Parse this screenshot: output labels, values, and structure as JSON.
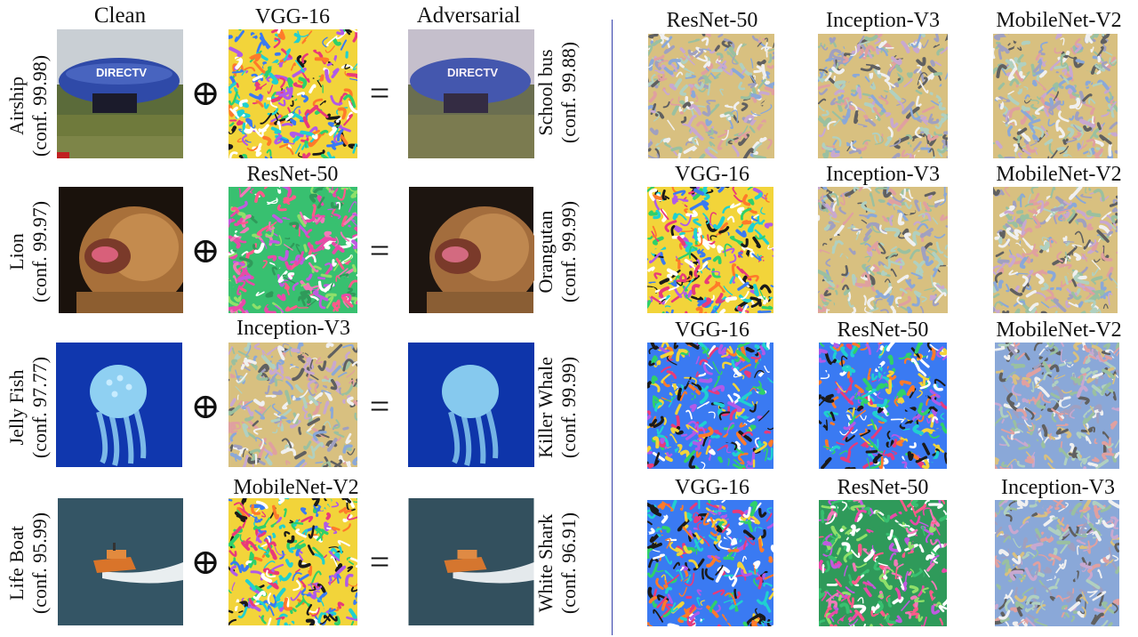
{
  "left_panel": {
    "headers": {
      "clean": "Clean",
      "adversarial": "Adversarial"
    },
    "rows": [
      {
        "clean_label": "Airship",
        "clean_conf": "(conf. 99.98)",
        "model": "VGG-16",
        "adv_label": "School bus",
        "adv_conf": "(conf. 99.88)",
        "operator_plus": "⊕",
        "operator_eq": "="
      },
      {
        "clean_label": "Lion",
        "clean_conf": "(conf. 99.97)",
        "model": "ResNet-50",
        "adv_label": "Orangutan",
        "adv_conf": "(conf. 99.99)",
        "operator_plus": "⊕",
        "operator_eq": "="
      },
      {
        "clean_label": "Jelly Fish",
        "clean_conf": "(conf. 97.77)",
        "model": "Inception-V3",
        "adv_label": "Killer Whale",
        "adv_conf": "(conf. 99.99)",
        "operator_plus": "⊕",
        "operator_eq": "="
      },
      {
        "clean_label": "Life Boat",
        "clean_conf": "(conf. 95.99)",
        "model": "MobileNet-V2",
        "adv_label": "White Shark",
        "adv_conf": "(conf. 96.91)",
        "operator_plus": "⊕",
        "operator_eq": "="
      }
    ]
  },
  "right_panel": {
    "rows": [
      [
        "ResNet-50",
        "Inception-V3",
        "MobileNet-V2"
      ],
      [
        "VGG-16",
        "Inception-V3",
        "MobileNet-V2"
      ],
      [
        "VGG-16",
        "ResNet-50",
        "MobileNet-V2"
      ],
      [
        "VGG-16",
        "ResNet-50",
        "Inception-V3"
      ]
    ]
  },
  "colors": {
    "divider": "#3340aa",
    "airship_sky": "#c9cfd4",
    "airship_grass": "#6f7a3c",
    "airship_body": "#2f4aa8",
    "lion_fur": "#a8703a",
    "lion_bg": "#1a120c",
    "jelly_bg": "#0b2fa0",
    "jelly_body": "#8fd0f2",
    "sea": "#2f4e5e",
    "boat": "#d9742a"
  },
  "images": {
    "airship_text": "DIRECTV"
  }
}
